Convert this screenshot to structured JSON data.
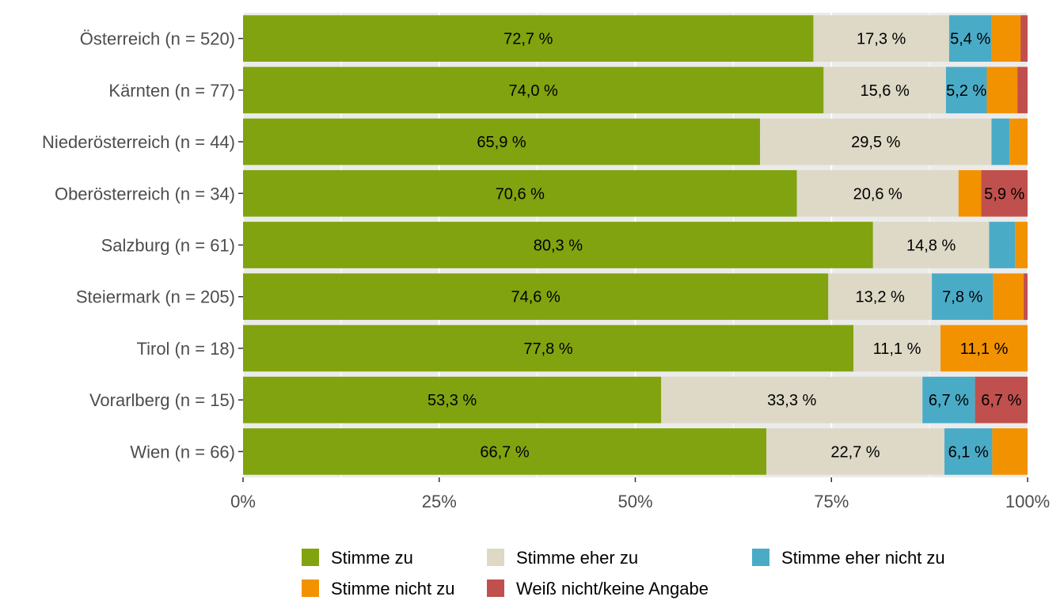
{
  "chart_data": {
    "type": "bar",
    "orientation": "horizontal",
    "stacked": "percent",
    "categories": [
      "Österreich (n = 520)",
      "Kärnten (n = 77)",
      "Niederösterreich (n = 44)",
      "Oberösterreich (n = 34)",
      "Salzburg (n = 61)",
      "Steiermark (n = 205)",
      "Tirol (n = 18)",
      "Vorarlberg (n = 15)",
      "Wien (n = 66)"
    ],
    "series": [
      {
        "name": "Stimme zu",
        "color": "#81a30f",
        "values": [
          72.7,
          74.0,
          65.9,
          70.6,
          80.3,
          74.6,
          77.8,
          53.3,
          66.7
        ],
        "labels": [
          "72,7 %",
          "74,0 %",
          "65,9 %",
          "70,6 %",
          "80,3 %",
          "74,6 %",
          "77,8 %",
          "53,3 %",
          "66,7 %"
        ]
      },
      {
        "name": "Stimme eher zu",
        "color": "#ddd9c6",
        "values": [
          17.3,
          15.6,
          29.5,
          20.6,
          14.8,
          13.2,
          11.1,
          33.3,
          22.7
        ],
        "labels": [
          "17,3 %",
          "15,6 %",
          "29,5 %",
          "20,6 %",
          "14,8 %",
          "13,2 %",
          "11,1 %",
          "33,3 %",
          "22,7 %"
        ]
      },
      {
        "name": "Stimme eher nicht zu",
        "color": "#4aabc7",
        "values": [
          5.4,
          5.2,
          2.3,
          0,
          3.3,
          7.8,
          0,
          6.7,
          6.1
        ],
        "labels": [
          "5,4 %",
          "5,2 %",
          "",
          "",
          "",
          "7,8 %",
          "",
          "6,7 %",
          "6,1 %"
        ]
      },
      {
        "name": "Stimme nicht zu",
        "color": "#f39200",
        "values": [
          3.7,
          3.9,
          2.3,
          2.9,
          1.6,
          3.9,
          11.1,
          0,
          4.5
        ],
        "labels": [
          "",
          "",
          "",
          "",
          "",
          "",
          "11,1 %",
          "",
          ""
        ]
      },
      {
        "name": "Weiß nicht/keine Angabe",
        "color": "#c0504d",
        "values": [
          0.9,
          1.3,
          0,
          5.9,
          0,
          0.5,
          0,
          6.7,
          0
        ],
        "labels": [
          "",
          "",
          "",
          "5,9 %",
          "",
          "",
          "",
          "6,7 %",
          ""
        ]
      }
    ],
    "xlim": [
      0,
      100
    ],
    "xticks": [
      "0%",
      "25%",
      "50%",
      "75%",
      "100%"
    ],
    "xtick_values": [
      0,
      25,
      50,
      75,
      100
    ],
    "title": "",
    "xlabel": "",
    "ylabel": "",
    "grid": true,
    "legend_position": "bottom"
  }
}
